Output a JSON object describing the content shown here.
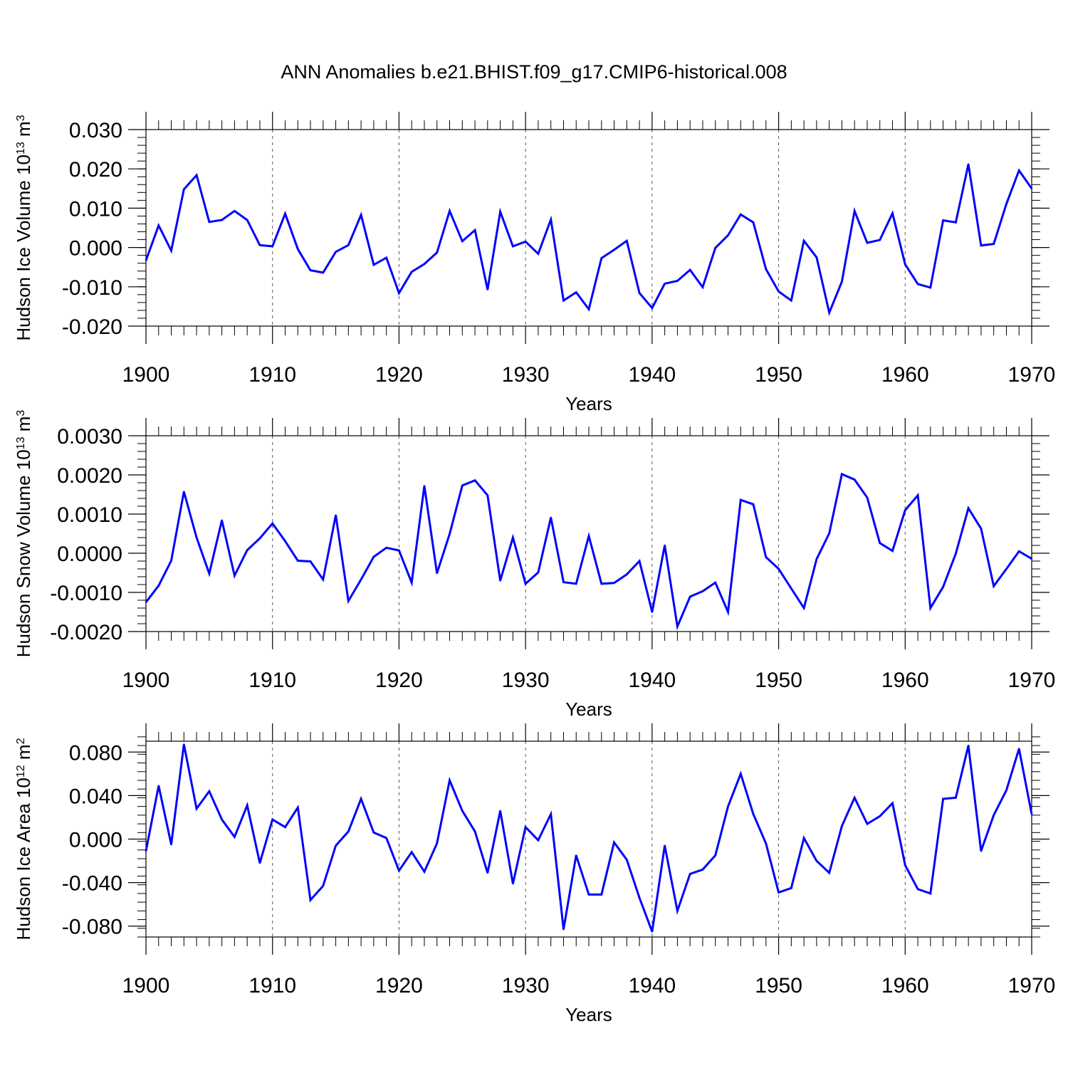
{
  "title": "ANN Anomalies b.e21.BHIST.f09_g17.CMIP6-historical.008",
  "chart_data": [
    {
      "type": "line",
      "title": "ANN Anomalies b.e21.BHIST.f09_g17.CMIP6-historical.008",
      "xlabel": "Years",
      "ylabel_main": "Hudson Ice Volume 10",
      "ylabel_exp": "13",
      "ylabel_unit": " m",
      "ylabel_unit_exp": "3",
      "xlim": [
        1900,
        1970
      ],
      "ylim": [
        -0.02,
        0.03
      ],
      "yticks": [
        -0.02,
        -0.01,
        0.0,
        0.01,
        0.02,
        0.03
      ],
      "ytick_labels": [
        "-0.020",
        "-0.010",
        "0.000",
        "0.010",
        "0.020",
        "0.030"
      ],
      "ytick_minor": 0.002,
      "xticks": [
        1900,
        1910,
        1920,
        1930,
        1940,
        1950,
        1960,
        1970
      ],
      "xtick_labels": [
        "1900",
        "1910",
        "1920",
        "1930",
        "1940",
        "1950",
        "1960",
        "1970"
      ],
      "grid_x": true,
      "line_color": "#0000ff",
      "x": [
        1900,
        1901,
        1902,
        1903,
        1904,
        1905,
        1906,
        1907,
        1908,
        1909,
        1910,
        1911,
        1912,
        1913,
        1914,
        1915,
        1916,
        1917,
        1918,
        1919,
        1920,
        1921,
        1922,
        1923,
        1924,
        1925,
        1926,
        1927,
        1928,
        1929,
        1930,
        1931,
        1932,
        1933,
        1934,
        1935,
        1936,
        1937,
        1938,
        1939,
        1940,
        1941,
        1942,
        1943,
        1944,
        1945,
        1946,
        1947,
        1948,
        1949,
        1950,
        1951,
        1952,
        1953,
        1954,
        1955,
        1956,
        1957,
        1958,
        1959,
        1960,
        1961,
        1962,
        1963,
        1964,
        1965,
        1966,
        1967,
        1968,
        1969,
        1970
      ],
      "y": [
        -0.0033,
        0.0056,
        -0.0008,
        0.0148,
        0.0184,
        0.0065,
        0.007,
        0.0093,
        0.007,
        0.0006,
        0.0003,
        0.0086,
        -0.0004,
        -0.0058,
        -0.0064,
        -0.0011,
        0.0006,
        0.0083,
        -0.0044,
        -0.0026,
        -0.0116,
        -0.0062,
        -0.0042,
        -0.0013,
        0.0093,
        0.0016,
        0.0044,
        -0.0107,
        0.0091,
        0.0003,
        0.0015,
        -0.0016,
        0.0071,
        -0.0135,
        -0.0114,
        -0.0157,
        -0.0027,
        -0.0006,
        0.0017,
        -0.0116,
        -0.0154,
        -0.0092,
        -0.0085,
        -0.0057,
        -0.0101,
        -0.0001,
        0.0031,
        0.0084,
        0.0064,
        -0.0055,
        -0.0112,
        -0.0135,
        0.0017,
        -0.0025,
        -0.0166,
        -0.0087,
        0.0093,
        0.0012,
        0.0019,
        0.0087,
        -0.0043,
        -0.0093,
        -0.0102,
        0.0069,
        0.0064,
        0.0212,
        0.0005,
        0.0009,
        0.0111,
        0.0196,
        0.015
      ]
    },
    {
      "type": "line",
      "title": "",
      "xlabel": "Years",
      "ylabel_main": "Hudson Snow Volume 10",
      "ylabel_exp": "13",
      "ylabel_unit": " m",
      "ylabel_unit_exp": "3",
      "xlim": [
        1900,
        1970
      ],
      "ylim": [
        -0.002,
        0.003
      ],
      "yticks": [
        -0.002,
        -0.001,
        0.0,
        0.001,
        0.002,
        0.003
      ],
      "ytick_labels": [
        "-0.0020",
        "-0.0010",
        "0.0000",
        "0.0010",
        "0.0020",
        "0.0030"
      ],
      "ytick_minor": 0.0002,
      "xticks": [
        1900,
        1910,
        1920,
        1930,
        1940,
        1950,
        1960,
        1970
      ],
      "xtick_labels": [
        "1900",
        "1910",
        "1920",
        "1930",
        "1940",
        "1950",
        "1960",
        "1970"
      ],
      "grid_x": true,
      "line_color": "#0000ff",
      "x": [
        1900,
        1901,
        1902,
        1903,
        1904,
        1905,
        1906,
        1907,
        1908,
        1909,
        1910,
        1911,
        1912,
        1913,
        1914,
        1915,
        1916,
        1917,
        1918,
        1919,
        1920,
        1921,
        1922,
        1923,
        1924,
        1925,
        1926,
        1927,
        1928,
        1929,
        1930,
        1931,
        1932,
        1933,
        1934,
        1935,
        1936,
        1937,
        1938,
        1939,
        1940,
        1941,
        1942,
        1943,
        1944,
        1945,
        1946,
        1947,
        1948,
        1949,
        1950,
        1951,
        1952,
        1953,
        1954,
        1955,
        1956,
        1957,
        1958,
        1959,
        1960,
        1961,
        1962,
        1963,
        1964,
        1965,
        1966,
        1967,
        1968,
        1969,
        1970
      ],
      "y": [
        -0.00125,
        -0.00083,
        -0.00019,
        0.00157,
        0.0004,
        -0.00052,
        0.00084,
        -0.00057,
        8e-05,
        0.00038,
        0.00076,
        0.00031,
        -0.00019,
        -0.00021,
        -0.00067,
        0.00097,
        -0.00122,
        -0.00067,
        -9e-05,
        0.00014,
        7e-05,
        -0.00075,
        0.00172,
        -0.00051,
        0.00049,
        0.00173,
        0.00186,
        0.00148,
        -0.0007,
        0.0004,
        -0.00078,
        -0.00049,
        0.00091,
        -0.00074,
        -0.00078,
        0.00044,
        -0.00078,
        -0.00076,
        -0.00054,
        -0.0002,
        -0.0015,
        0.0002,
        -0.00187,
        -0.00111,
        -0.00097,
        -0.00075,
        -0.0015,
        0.00136,
        0.00125,
        -0.0001,
        -0.0004,
        -0.0009,
        -0.0014,
        -0.00015,
        0.00051,
        0.00202,
        0.00188,
        0.00142,
        0.00026,
        6e-05,
        0.0011,
        0.00148,
        -0.0014,
        -0.00086,
        -1e-05,
        0.00115,
        0.00063,
        -0.00084,
        -0.0004,
        5e-05,
        -0.00014
      ]
    },
    {
      "type": "line",
      "title": "",
      "xlabel": "Years",
      "ylabel_main": "Hudson Ice Area 10",
      "ylabel_exp": "12",
      "ylabel_unit": " m",
      "ylabel_unit_exp": "2",
      "xlim": [
        1900,
        1970
      ],
      "ylim": [
        -0.09,
        0.09
      ],
      "yticks": [
        -0.08,
        -0.04,
        0.0,
        0.04,
        0.08
      ],
      "ytick_labels": [
        "-0.080",
        "-0.040",
        "0.000",
        "0.040",
        "0.080"
      ],
      "ytick_minor": 0.008,
      "xticks": [
        1900,
        1910,
        1920,
        1930,
        1940,
        1950,
        1960,
        1970
      ],
      "xtick_labels": [
        "1900",
        "1910",
        "1920",
        "1930",
        "1940",
        "1950",
        "1960",
        "1970"
      ],
      "grid_x": true,
      "line_color": "#0000ff",
      "x": [
        1900,
        1901,
        1902,
        1903,
        1904,
        1905,
        1906,
        1907,
        1908,
        1909,
        1910,
        1911,
        1912,
        1913,
        1914,
        1915,
        1916,
        1917,
        1918,
        1919,
        1920,
        1921,
        1922,
        1923,
        1924,
        1925,
        1926,
        1927,
        1928,
        1929,
        1930,
        1931,
        1932,
        1933,
        1934,
        1935,
        1936,
        1937,
        1938,
        1939,
        1940,
        1941,
        1942,
        1943,
        1944,
        1945,
        1946,
        1947,
        1948,
        1949,
        1950,
        1951,
        1952,
        1953,
        1954,
        1955,
        1956,
        1957,
        1958,
        1959,
        1960,
        1961,
        1962,
        1963,
        1964,
        1965,
        1966,
        1967,
        1968,
        1969,
        1970
      ],
      "y": [
        -0.011,
        0.049,
        -0.005,
        0.087,
        0.028,
        0.044,
        0.018,
        0.002,
        0.031,
        -0.022,
        0.018,
        0.011,
        0.029,
        -0.056,
        -0.043,
        -0.006,
        0.007,
        0.037,
        0.006,
        0.001,
        -0.029,
        -0.012,
        -0.03,
        -0.004,
        0.054,
        0.026,
        0.007,
        -0.031,
        0.026,
        -0.041,
        0.011,
        -0.001,
        0.023,
        -0.083,
        -0.015,
        -0.051,
        -0.051,
        -0.003,
        -0.019,
        -0.054,
        -0.085,
        -0.006,
        -0.066,
        -0.032,
        -0.028,
        -0.015,
        0.03,
        0.06,
        0.023,
        -0.004,
        -0.049,
        -0.045,
        0.001,
        -0.02,
        -0.031,
        0.012,
        0.038,
        0.014,
        0.021,
        0.033,
        -0.024,
        -0.046,
        -0.05,
        0.037,
        0.038,
        0.086,
        -0.011,
        0.022,
        0.045,
        0.083,
        0.023
      ]
    }
  ]
}
